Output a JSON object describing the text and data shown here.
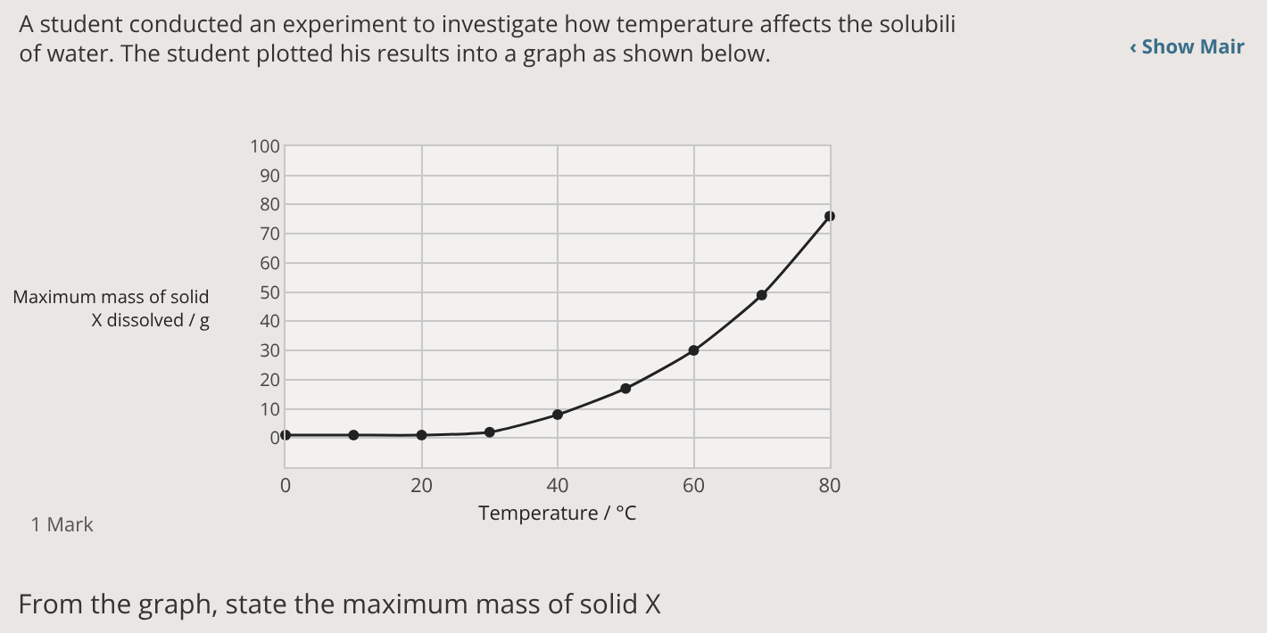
{
  "chart_data": {
    "type": "line",
    "title": "A student conducted an experiment to investigate how temperature affects the solubili of water. The student plotted his results into a graph as shown below.",
    "xlabel": "Temperature / °C",
    "ylabel": "Maximum mass of solid X dissolved / g",
    "x": [
      0,
      10,
      20,
      30,
      40,
      50,
      60,
      70,
      80
    ],
    "series": [
      {
        "color": "#222222",
        "values": [
          1,
          1,
          1,
          2,
          8,
          17,
          30,
          49,
          76
        ]
      }
    ],
    "xlim": [
      0,
      80
    ],
    "xticks": [
      0,
      20,
      40,
      60,
      80
    ],
    "ylim": [
      -10,
      100
    ],
    "yticks": [
      0,
      10,
      20,
      30,
      40,
      50,
      60,
      70,
      80,
      90,
      100
    ],
    "grid": true,
    "marker": "circle",
    "line_style": "solid",
    "legend": false,
    "annotations": [
      "‹ Show Mair",
      "1 Mark",
      "From the graph, state the maximum mass of solid X"
    ]
  }
}
